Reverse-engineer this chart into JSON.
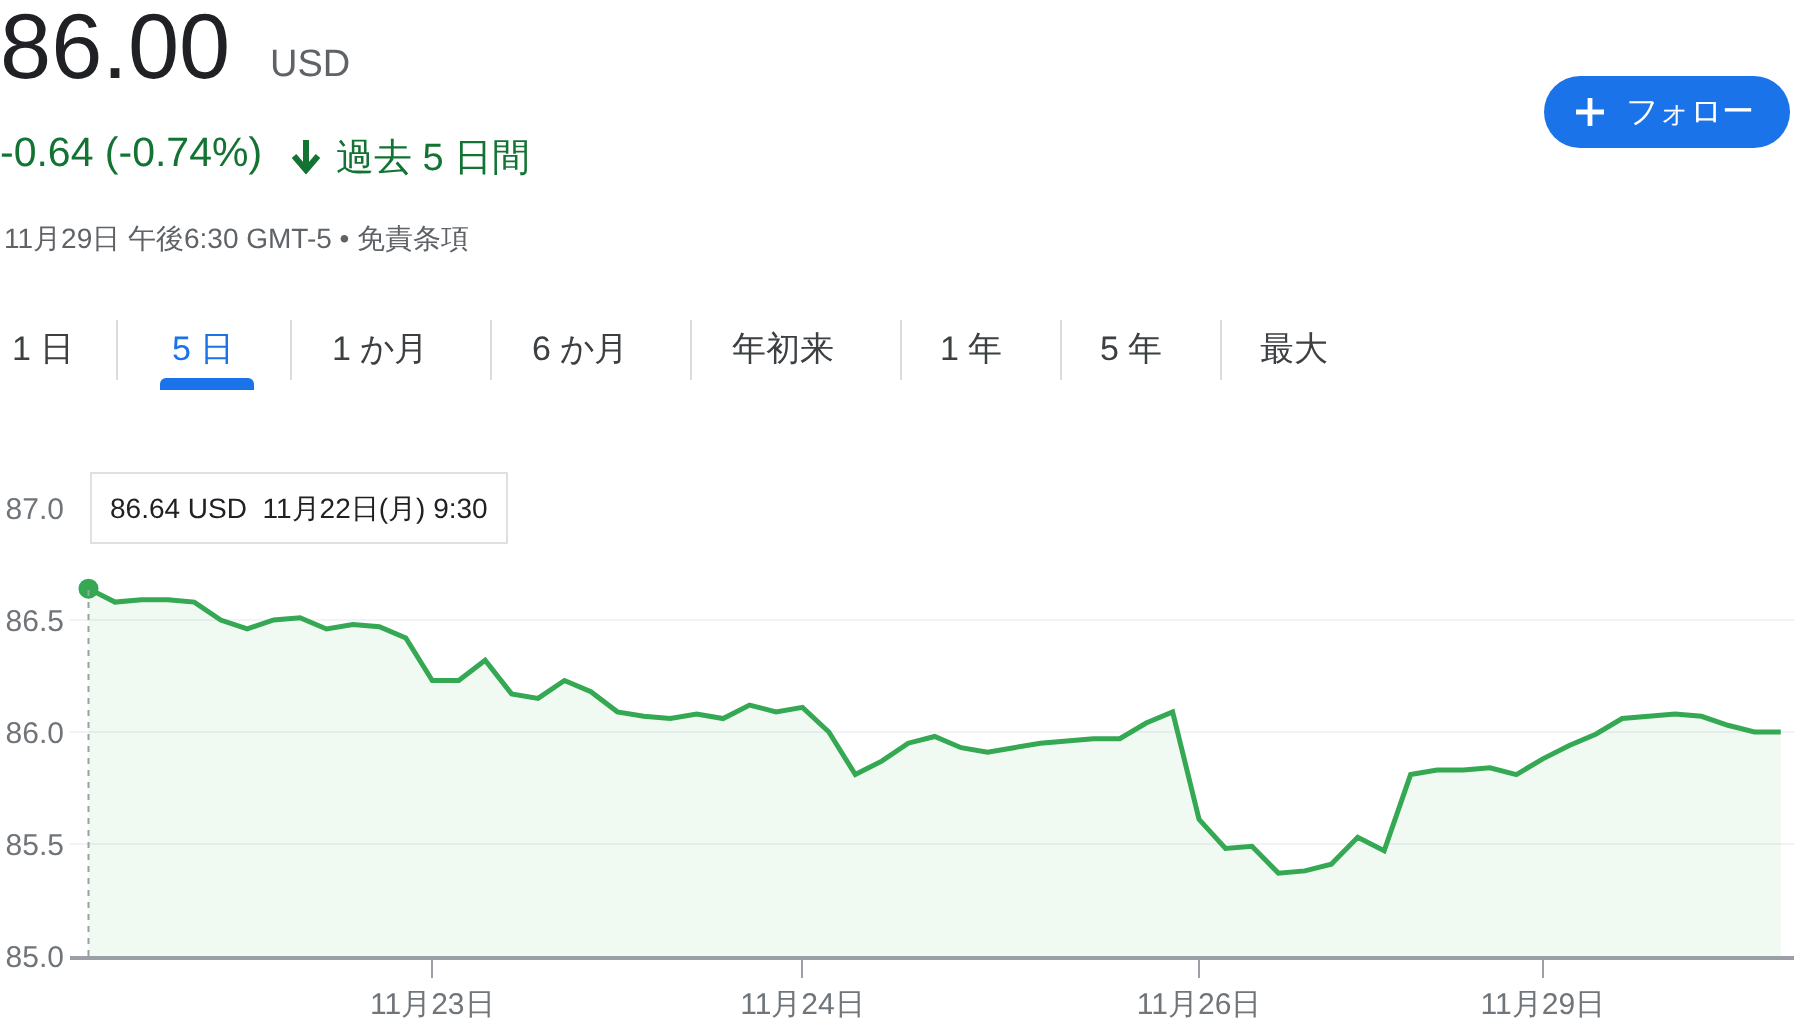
{
  "chart_data": {
    "type": "area",
    "title": "86.00",
    "subtitle": "-0.64 (-0.74%)",
    "annotations": [
      "USD",
      "過去 5 日間",
      "11月29日 午後6:30 GMT-5 • 免責条項",
      "1 日",
      "5 日",
      "1 か月",
      "6 か月",
      "年初来",
      "1 年",
      "5 年",
      "最大",
      "フォロー",
      "86.64 USD  11月22日(月) 9:30"
    ],
    "categories": [
      null,
      null,
      null,
      null,
      null,
      null,
      null,
      null,
      null,
      null,
      null,
      null,
      null,
      "11月23日",
      null,
      null,
      null,
      null,
      null,
      null,
      null,
      null,
      null,
      null,
      null,
      null,
      null,
      "11月24日",
      null,
      null,
      null,
      null,
      null,
      null,
      null,
      null,
      null,
      null,
      null,
      null,
      null,
      null,
      "11月26日",
      null,
      null,
      null,
      null,
      null,
      null,
      null,
      null,
      null,
      null,
      null,
      null,
      "11月29日",
      null,
      null,
      null,
      null,
      null,
      null,
      null,
      null,
      null
    ],
    "series": [
      {
        "color": "#34a853",
        "values": [
          86.64,
          86.58,
          86.59,
          86.59,
          86.58,
          86.5,
          86.46,
          86.5,
          86.51,
          86.46,
          86.48,
          86.47,
          86.42,
          86.23,
          86.23,
          86.32,
          86.17,
          86.15,
          86.23,
          86.18,
          86.09,
          86.07,
          86.06,
          86.08,
          86.06,
          86.12,
          86.09,
          86.11,
          86.0,
          85.81,
          85.87,
          85.95,
          85.98,
          85.93,
          85.91,
          85.93,
          85.95,
          85.96,
          85.97,
          85.97,
          86.04,
          86.09,
          85.61,
          85.48,
          85.49,
          85.37,
          85.38,
          85.41,
          85.53,
          85.47,
          85.81,
          85.83,
          85.83,
          85.84,
          85.81,
          85.88,
          85.94,
          85.99,
          86.06,
          86.07,
          86.08,
          86.07,
          86.03,
          86.0,
          86.0
        ]
      }
    ],
    "ylim": [
      85.0,
      87.0
    ],
    "yticks": [
      {
        "value": 85.0,
        "label": "85.0"
      },
      {
        "value": 85.5,
        "label": "85.5"
      },
      {
        "value": 86.0,
        "label": "86.0"
      },
      {
        "value": 86.5,
        "label": "86.5"
      },
      {
        "value": 87.0,
        "label": "87.0"
      }
    ],
    "grid": "y",
    "marker": "none",
    "line_style": "solid"
  }
}
